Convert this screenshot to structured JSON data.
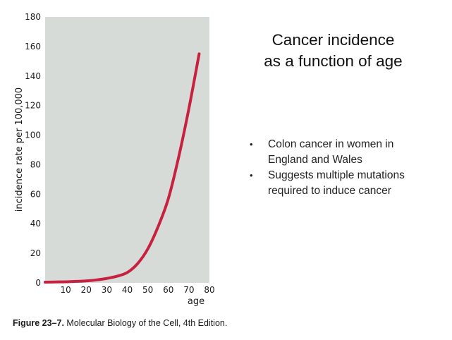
{
  "slide": {
    "title_line1": "Cancer incidence",
    "title_line2": "as a function of age",
    "bullets": [
      "Colon cancer in women in England and Wales",
      "Suggests multiple mutations required to induce cancer"
    ],
    "caption_bold": "Figure 23–7.",
    "caption_rest": " Molecular Biology of the Cell, 4th Edition."
  },
  "colors": {
    "plot_background": "#d6dbd7",
    "curve": "#c8203f",
    "text": "#1a1a1a"
  },
  "chart_data": {
    "type": "line",
    "xlabel": "age",
    "ylabel": "incidence rate per 100,000",
    "xlim": [
      0,
      80
    ],
    "ylim": [
      0,
      180
    ],
    "xticks": [
      10,
      20,
      30,
      40,
      50,
      60,
      70,
      80
    ],
    "yticks": [
      0,
      20,
      40,
      60,
      80,
      100,
      120,
      140,
      160,
      180
    ],
    "grid": false,
    "series": [
      {
        "x": [
          0,
          5,
          10,
          15,
          20,
          25,
          30,
          35,
          40,
          45,
          50,
          55,
          60,
          65,
          70,
          75
        ],
        "y": [
          0.5,
          0.6,
          0.7,
          1,
          1.3,
          2,
          3,
          4.5,
          7,
          13,
          23,
          38,
          57,
          85,
          118,
          155
        ]
      }
    ]
  }
}
